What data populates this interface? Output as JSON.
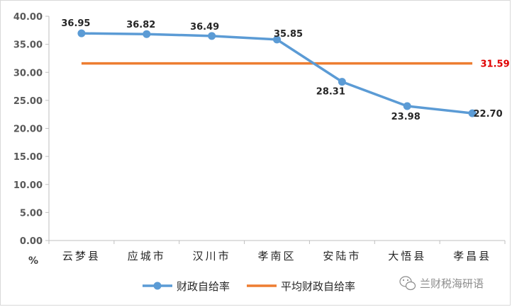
{
  "chart_data": {
    "type": "line",
    "categories": [
      "云梦县",
      "应城市",
      "汉川市",
      "孝南区",
      "安陆市",
      "大悟县",
      "孝昌县"
    ],
    "series": [
      {
        "name": "财政自给率",
        "values": [
          36.95,
          36.82,
          36.49,
          35.85,
          28.31,
          23.98,
          22.7
        ],
        "color": "#5b9bd5"
      },
      {
        "name": "平均财政自给率",
        "values": [
          31.59,
          31.59,
          31.59,
          31.59,
          31.59,
          31.59,
          31.59
        ],
        "color": "#ed7d31"
      }
    ],
    "data_labels": [
      "36.95",
      "36.82",
      "36.49",
      "35.85",
      "28.31",
      "23.98",
      "22.70"
    ],
    "average_label": "31.59",
    "average_label_color": "#e00000",
    "y_tick_labels": [
      "0.00",
      "5.00",
      "10.00",
      "15.00",
      "20.00",
      "25.00",
      "30.00",
      "35.00",
      "40.00"
    ],
    "ylabel": "%",
    "ylim": [
      0,
      40
    ],
    "grid": false,
    "legend_position": "bottom",
    "watermark": "兰财税海研语"
  }
}
